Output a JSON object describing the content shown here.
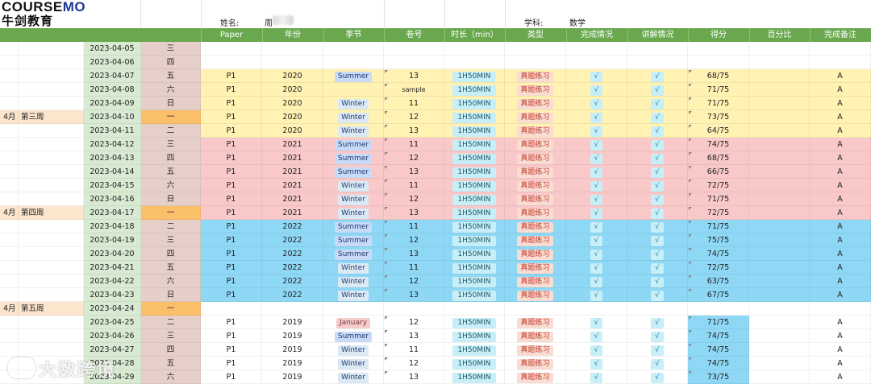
{
  "brand": {
    "name_en_a": "COURSE",
    "name_en_b": "MO",
    "name_cn": "牛剑教育"
  },
  "header": {
    "name_label": "姓名:",
    "name_value": "周",
    "subject_label": "学科:",
    "subject_value": "数学"
  },
  "columns": [
    "Paper",
    "年份",
    "季节",
    "卷号",
    "时长（min）",
    "类型",
    "完成情况",
    "讲解情况",
    "得分",
    "百分比",
    "完成备注"
  ],
  "colors": {
    "header_green": "#6aa84f",
    "date_bg": "#d9ead3",
    "day_bg": "#e6cfc9",
    "day_monday": "#fbbf6a",
    "week_label": "#fce5cd",
    "yellow": "#fff2b3",
    "pink": "#f9c9c9",
    "blue": "#8fd8f5",
    "summer": "#c9daf8",
    "winter": "#dbe9f5",
    "january": "#f4cccc",
    "tag_bg": "#f9dcd2",
    "tag_fg": "#c0392b",
    "check_bg": "#c8eef7",
    "score_bg": "#8fd8f5"
  },
  "rows": [
    {
      "week": "",
      "week_label": "",
      "date": "2023-04-05",
      "day": "三",
      "band": "white",
      "paper": "",
      "year": "",
      "season": "",
      "vol": "",
      "duration": "",
      "type": "",
      "done": "",
      "explain": "",
      "score": "",
      "pct": "",
      "note": ""
    },
    {
      "week": "",
      "week_label": "",
      "date": "2023-04-06",
      "day": "四",
      "band": "white",
      "paper": "",
      "year": "",
      "season": "",
      "vol": "",
      "duration": "",
      "type": "",
      "done": "",
      "explain": "",
      "score": "",
      "pct": "",
      "note": ""
    },
    {
      "week": "",
      "week_label": "",
      "date": "2023-04-07",
      "day": "五",
      "band": "yellow",
      "paper": "P1",
      "year": "2020",
      "season": "Summer",
      "vol": "13",
      "duration": "1H50MIN",
      "type": "真题练习",
      "done": "√",
      "explain": "√",
      "score": "68/75",
      "pct": "",
      "note": "A"
    },
    {
      "week": "",
      "week_label": "",
      "date": "2023-04-08",
      "day": "六",
      "band": "yellow",
      "paper": "P1",
      "year": "2020",
      "season": "",
      "vol": "sample",
      "duration": "1H50MIN",
      "type": "真题练习",
      "done": "√",
      "explain": "√",
      "score": "71/75",
      "pct": "",
      "note": "A"
    },
    {
      "week": "",
      "week_label": "",
      "date": "2023-04-09",
      "day": "日",
      "band": "yellow",
      "paper": "P1",
      "year": "2020",
      "season": "Winter",
      "vol": "11",
      "duration": "1H50MIN",
      "type": "真题练习",
      "done": "√",
      "explain": "√",
      "score": "71/75",
      "pct": "",
      "note": "A"
    },
    {
      "week": "4月",
      "week_label": "第三周",
      "date": "2023-04-10",
      "day": "一",
      "band": "yellow",
      "paper": "P1",
      "year": "2020",
      "season": "Winter",
      "vol": "12",
      "duration": "1H50MIN",
      "type": "真题练习",
      "done": "√",
      "explain": "√",
      "score": "73/75",
      "pct": "",
      "note": "A"
    },
    {
      "week": "",
      "week_label": "",
      "date": "2023-04-11",
      "day": "二",
      "band": "yellow",
      "paper": "P1",
      "year": "2020",
      "season": "Winter",
      "vol": "13",
      "duration": "1H50MIN",
      "type": "真题练习",
      "done": "√",
      "explain": "√",
      "score": "64/75",
      "pct": "",
      "note": "A"
    },
    {
      "week": "",
      "week_label": "",
      "date": "2023-04-12",
      "day": "三",
      "band": "pink",
      "paper": "P1",
      "year": "2021",
      "season": "Summer",
      "vol": "11",
      "duration": "1H50MIN",
      "type": "真题练习",
      "done": "√",
      "explain": "√",
      "score": "74/75",
      "pct": "",
      "note": "A"
    },
    {
      "week": "",
      "week_label": "",
      "date": "2023-04-13",
      "day": "四",
      "band": "pink",
      "paper": "P1",
      "year": "2021",
      "season": "Summer",
      "vol": "12",
      "duration": "1H50MIN",
      "type": "真题练习",
      "done": "√",
      "explain": "√",
      "score": "68/75",
      "pct": "",
      "note": "A"
    },
    {
      "week": "",
      "week_label": "",
      "date": "2023-04-14",
      "day": "五",
      "band": "pink",
      "paper": "P1",
      "year": "2021",
      "season": "Summer",
      "vol": "13",
      "duration": "1H50MIN",
      "type": "真题练习",
      "done": "√",
      "explain": "√",
      "score": "66/75",
      "pct": "",
      "note": "A"
    },
    {
      "week": "",
      "week_label": "",
      "date": "2023-04-15",
      "day": "六",
      "band": "pink",
      "paper": "P1",
      "year": "2021",
      "season": "Winter",
      "vol": "11",
      "duration": "1H50MIN",
      "type": "真题练习",
      "done": "√",
      "explain": "√",
      "score": "72/75",
      "pct": "",
      "note": "A"
    },
    {
      "week": "",
      "week_label": "",
      "date": "2023-04-16",
      "day": "日",
      "band": "pink",
      "paper": "P1",
      "year": "2021",
      "season": "Winter",
      "vol": "12",
      "duration": "1H50MIN",
      "type": "真题练习",
      "done": "√",
      "explain": "√",
      "score": "71/75",
      "pct": "",
      "note": "A"
    },
    {
      "week": "4月",
      "week_label": "第四周",
      "date": "2023-04-17",
      "day": "一",
      "band": "pink",
      "paper": "P1",
      "year": "2021",
      "season": "Winter",
      "vol": "13",
      "duration": "1H50MIN",
      "type": "真题练习",
      "done": "√",
      "explain": "√",
      "score": "72/75",
      "pct": "",
      "note": "A"
    },
    {
      "week": "",
      "week_label": "",
      "date": "2023-04-18",
      "day": "二",
      "band": "blue",
      "paper": "P1",
      "year": "2022",
      "season": "Summer",
      "vol": "11",
      "duration": "1H50MIN",
      "type": "真题练习",
      "done": "√",
      "explain": "√",
      "score": "71/75",
      "pct": "",
      "note": "A"
    },
    {
      "week": "",
      "week_label": "",
      "date": "2023-04-19",
      "day": "三",
      "band": "blue",
      "paper": "P1",
      "year": "2022",
      "season": "Summer",
      "vol": "12",
      "duration": "1H50MIN",
      "type": "真题练习",
      "done": "√",
      "explain": "√",
      "score": "75/75",
      "pct": "",
      "note": "A"
    },
    {
      "week": "",
      "week_label": "",
      "date": "2023-04-20",
      "day": "四",
      "band": "blue",
      "paper": "P1",
      "year": "2022",
      "season": "Summer",
      "vol": "13",
      "duration": "1H50MIN",
      "type": "真题练习",
      "done": "√",
      "explain": "√",
      "score": "74/75",
      "pct": "",
      "note": "A"
    },
    {
      "week": "",
      "week_label": "",
      "date": "2023-04-21",
      "day": "五",
      "band": "blue",
      "paper": "P1",
      "year": "2022",
      "season": "Winter",
      "vol": "11",
      "duration": "1H50MIN",
      "type": "真题练习",
      "done": "√",
      "explain": "√",
      "score": "72/75",
      "pct": "",
      "note": "A"
    },
    {
      "week": "",
      "week_label": "",
      "date": "2023-04-22",
      "day": "六",
      "band": "blue",
      "paper": "P1",
      "year": "2022",
      "season": "Winter",
      "vol": "12",
      "duration": "1H50MIN",
      "type": "真题练习",
      "done": "√",
      "explain": "√",
      "score": "63/75",
      "pct": "",
      "note": "A"
    },
    {
      "week": "",
      "week_label": "",
      "date": "2023-04-23",
      "day": "日",
      "band": "blue",
      "paper": "P1",
      "year": "2022",
      "season": "Winter",
      "vol": "13",
      "duration": "1H50MIN",
      "type": "真题练习",
      "done": "√",
      "explain": "√",
      "score": "67/75",
      "pct": "",
      "note": "A"
    },
    {
      "week": "4月",
      "week_label": "第五周",
      "date": "2023-04-24",
      "day": "一",
      "band": "white",
      "paper": "",
      "year": "",
      "season": "",
      "vol": "",
      "duration": "",
      "type": "",
      "done": "",
      "explain": "",
      "score": "",
      "pct": "",
      "note": ""
    },
    {
      "week": "",
      "week_label": "",
      "date": "2023-04-25",
      "day": "二",
      "band": "white",
      "paper": "P1",
      "year": "2019",
      "season": "January",
      "vol": "12",
      "duration": "1H50MIN",
      "type": "真题练习",
      "done": "√",
      "explain": "√",
      "score": "71/75",
      "pct": "",
      "note": "A"
    },
    {
      "week": "",
      "week_label": "",
      "date": "2023-04-26",
      "day": "三",
      "band": "white",
      "paper": "P1",
      "year": "2019",
      "season": "Summer",
      "vol": "13",
      "duration": "1H50MIN",
      "type": "真题练习",
      "done": "√",
      "explain": "√",
      "score": "74/75",
      "pct": "",
      "note": "A"
    },
    {
      "week": "",
      "week_label": "",
      "date": "2023-04-27",
      "day": "四",
      "band": "white",
      "paper": "P1",
      "year": "2019",
      "season": "Winter",
      "vol": "11",
      "duration": "1H50MIN",
      "type": "真题练习",
      "done": "√",
      "explain": "√",
      "score": "74/75",
      "pct": "",
      "note": "A"
    },
    {
      "week": "",
      "week_label": "",
      "date": "2023-04-28",
      "day": "五",
      "band": "white",
      "paper": "P1",
      "year": "2019",
      "season": "Winter",
      "vol": "12",
      "duration": "1H50MIN",
      "type": "真题练习",
      "done": "√",
      "explain": "√",
      "score": "74/75",
      "pct": "",
      "note": "A"
    },
    {
      "week": "",
      "week_label": "",
      "date": "2023-04-29",
      "day": "六",
      "band": "white",
      "paper": "P1",
      "year": "2019",
      "season": "Winter",
      "vol": "13",
      "duration": "1H50MIN",
      "type": "真题练习",
      "done": "√",
      "explain": "√",
      "score": "73/75",
      "pct": "",
      "note": "A"
    }
  ],
  "watermark": "大数跨境"
}
